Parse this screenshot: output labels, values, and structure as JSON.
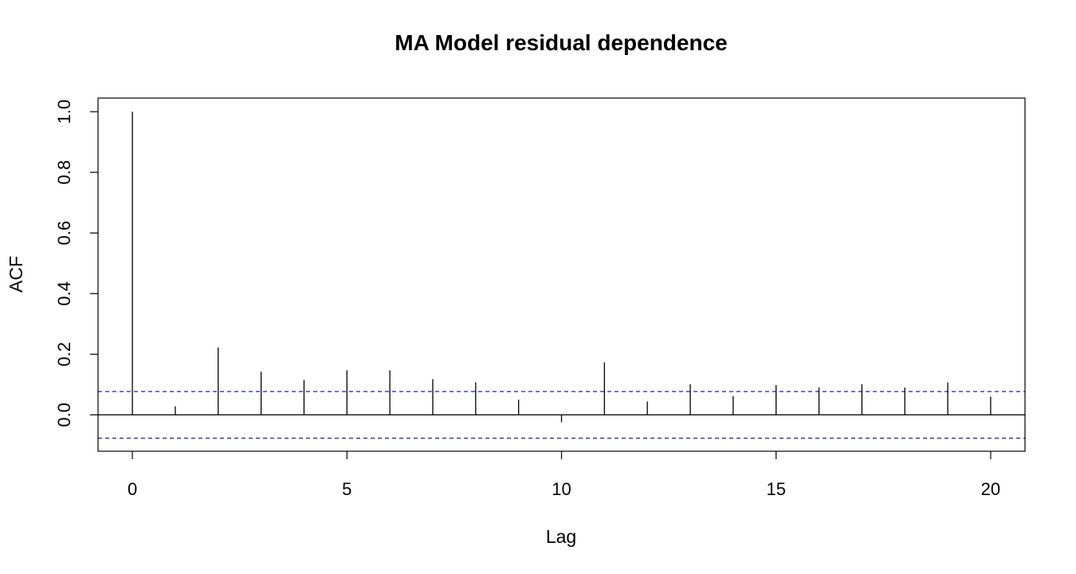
{
  "chart_data": {
    "type": "bar",
    "title": "MA Model residual dependence",
    "xlabel": "Lag",
    "ylabel": "ACF",
    "xlim": [
      -0.8,
      20.8
    ],
    "ylim": [
      -0.12,
      1.045
    ],
    "x_ticks": [
      0,
      5,
      10,
      15,
      20
    ],
    "y_ticks": [
      0.0,
      0.2,
      0.4,
      0.6,
      0.8,
      1.0
    ],
    "y_tick_labels": [
      "0.0",
      "0.2",
      "0.4",
      "0.6",
      "0.8",
      "1.0"
    ],
    "lags": [
      0,
      1,
      2,
      3,
      4,
      5,
      6,
      7,
      8,
      9,
      10,
      11,
      12,
      13,
      14,
      15,
      16,
      17,
      18,
      19,
      20
    ],
    "acf": [
      1.0,
      0.028,
      0.222,
      0.142,
      0.115,
      0.147,
      0.147,
      0.118,
      0.107,
      0.05,
      -0.024,
      0.173,
      0.044,
      0.101,
      0.062,
      0.098,
      0.09,
      0.101,
      0.09,
      0.107,
      0.06
    ],
    "confidence_bound": 0.077,
    "colors": {
      "bars": "#000000",
      "confidence": "#1f1fbf",
      "axis": "#000000"
    },
    "grid": false,
    "legend": "none"
  }
}
